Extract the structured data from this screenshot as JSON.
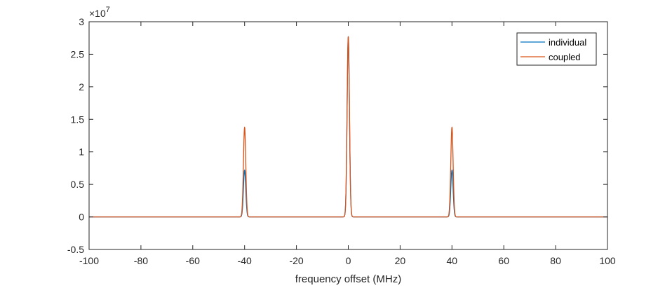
{
  "chart_data": {
    "type": "line",
    "xlabel": "frequency offset (MHz)",
    "ylabel": "",
    "xlim": [
      -100,
      100
    ],
    "ylim": [
      -0.5,
      3
    ],
    "y_exponent_label": "×10",
    "y_exponent_power": "7",
    "x_ticks": [
      -100,
      -80,
      -60,
      -40,
      -20,
      0,
      20,
      40,
      60,
      80,
      100
    ],
    "x_tick_labels": [
      "-100",
      "-80",
      "-60",
      "-40",
      "-20",
      "0",
      "20",
      "40",
      "60",
      "80",
      "100"
    ],
    "y_ticks": [
      -0.5,
      0,
      0.5,
      1,
      1.5,
      2,
      2.5,
      3
    ],
    "y_tick_labels": [
      "-0.5",
      "0",
      "0.5",
      "1",
      "1.5",
      "2",
      "2.5",
      "3"
    ],
    "grid": false,
    "legend_position": "top-right",
    "series": [
      {
        "name": "individual",
        "color": "#0072BD",
        "peaks": [
          {
            "center": -40,
            "height": 0.72,
            "width": 0.45
          },
          {
            "center": 0,
            "height": 2.77,
            "width": 0.45
          },
          {
            "center": 40,
            "height": 0.72,
            "width": 0.45
          }
        ]
      },
      {
        "name": "coupled",
        "color": "#D95319",
        "peaks": [
          {
            "center": -40,
            "height": 1.38,
            "width": 0.45
          },
          {
            "center": 0,
            "height": 2.77,
            "width": 0.45
          },
          {
            "center": 40,
            "height": 1.38,
            "width": 0.45
          }
        ]
      }
    ]
  }
}
